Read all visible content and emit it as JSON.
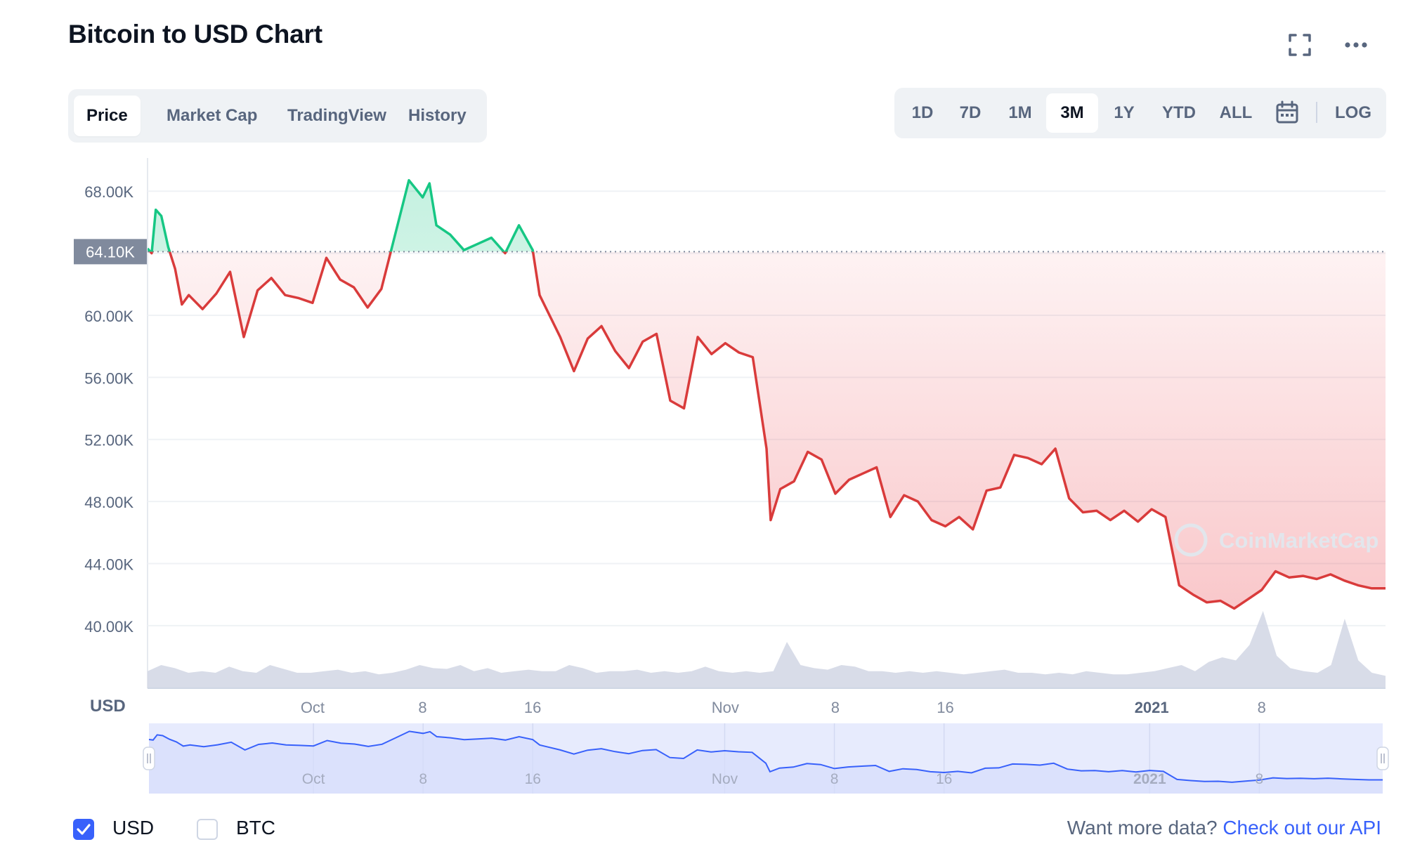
{
  "header": {
    "title": "Bitcoin to USD Chart",
    "fullscreen_icon": "fullscreen-icon",
    "more_icon": "more-dots-icon"
  },
  "tabs": [
    {
      "label": "Price",
      "active": true
    },
    {
      "label": "Market Cap",
      "active": false
    },
    {
      "label": "TradingView",
      "active": false
    },
    {
      "label": "History",
      "active": false
    }
  ],
  "ranges": [
    {
      "label": "1D",
      "active": false
    },
    {
      "label": "7D",
      "active": false
    },
    {
      "label": "1M",
      "active": false
    },
    {
      "label": "3M",
      "active": true
    },
    {
      "label": "1Y",
      "active": false
    },
    {
      "label": "YTD",
      "active": false
    },
    {
      "label": "ALL",
      "active": false
    }
  ],
  "calendar_icon": "calendar-icon",
  "log_label": "LOG",
  "colors": {
    "up": "#16c784",
    "down": "#d93b3b",
    "volume": "#d1d6e4",
    "navigator_line": "#3861fb",
    "navigator_fill": "#e7ebfd",
    "accent": "#3861fb"
  },
  "chart_data": {
    "type": "line",
    "title": "Bitcoin to USD Chart",
    "ylabel": "",
    "currency_label": "USD",
    "ylim": [
      38000,
      70000
    ],
    "yticks": [
      40000,
      44000,
      48000,
      52000,
      56000,
      60000,
      64000,
      68000
    ],
    "ytick_labels": [
      "40.00K",
      "44.00K",
      "48.00K",
      "52.00K",
      "56.00K",
      "60.00K",
      "64.00K",
      "68.00K"
    ],
    "baseline_value": 64100,
    "baseline_label": "64.10K",
    "x_ticks": [
      "Oct",
      "8",
      "16",
      "Nov",
      "8",
      "16",
      "2021",
      "8"
    ],
    "x_tick_positions": [
      12,
      20,
      28,
      42,
      50,
      58,
      73,
      81
    ],
    "x_range": [
      0,
      90
    ],
    "series": [
      {
        "x": [
          0,
          0.3,
          0.6,
          1,
          1.5,
          2,
          2.5,
          3,
          4,
          5,
          6,
          7,
          8,
          9,
          10,
          11,
          12,
          13,
          14,
          15,
          16,
          17,
          18,
          19,
          20,
          20.5,
          21,
          22,
          23,
          24,
          25,
          26,
          27,
          28,
          28.5,
          29,
          30,
          31,
          32,
          33,
          34,
          35,
          36,
          37,
          38,
          39,
          40,
          41,
          42,
          43,
          44,
          45,
          45.3,
          46,
          47,
          48,
          49,
          50,
          51,
          52,
          53,
          54,
          55,
          56,
          57,
          58,
          59,
          60,
          61,
          62,
          63,
          64,
          65,
          66,
          67,
          68,
          69,
          70,
          71,
          72,
          73,
          74,
          75,
          76,
          77,
          78,
          79,
          80,
          81,
          82,
          83,
          84,
          85,
          86,
          87,
          88,
          89,
          90
        ],
        "values": [
          64300,
          64000,
          66800,
          66400,
          64400,
          63000,
          60700,
          61300,
          60400,
          61400,
          62800,
          58600,
          61600,
          62400,
          61300,
          61100,
          60800,
          63700,
          62300,
          61800,
          60500,
          61700,
          65200,
          68700,
          67600,
          68500,
          65800,
          65200,
          64200,
          64600,
          65000,
          64000,
          65800,
          64200,
          61300,
          60400,
          58600,
          56400,
          58500,
          59300,
          57700,
          56600,
          58300,
          58800,
          54500,
          54000,
          58600,
          57500,
          58200,
          57600,
          57300,
          51400,
          46800,
          48800,
          49300,
          51200,
          50700,
          48500,
          49400,
          49800,
          50200,
          47000,
          48400,
          48000,
          46800,
          46400,
          47000,
          46200,
          48700,
          48900,
          51000,
          50800,
          50400,
          51400,
          48200,
          47300,
          47400,
          46800,
          47400,
          46700,
          47500,
          47000,
          42600,
          42000,
          41500,
          41600,
          41100,
          41700,
          42300,
          43500,
          43100,
          43200,
          43000,
          43300,
          42900,
          42600,
          42400,
          42400
        ]
      }
    ],
    "volume_relative": [
      0.22,
      0.3,
      0.26,
      0.2,
      0.22,
      0.2,
      0.28,
      0.22,
      0.2,
      0.3,
      0.25,
      0.2,
      0.2,
      0.22,
      0.24,
      0.2,
      0.22,
      0.18,
      0.2,
      0.24,
      0.3,
      0.26,
      0.25,
      0.3,
      0.22,
      0.26,
      0.2,
      0.22,
      0.24,
      0.22,
      0.22,
      0.3,
      0.26,
      0.2,
      0.22,
      0.22,
      0.24,
      0.2,
      0.22,
      0.2,
      0.22,
      0.28,
      0.22,
      0.2,
      0.22,
      0.2,
      0.22,
      0.6,
      0.3,
      0.26,
      0.24,
      0.3,
      0.28,
      0.22,
      0.22,
      0.2,
      0.22,
      0.2,
      0.22,
      0.2,
      0.18,
      0.2,
      0.22,
      0.24,
      0.2,
      0.2,
      0.18,
      0.2,
      0.18,
      0.22,
      0.2,
      0.18,
      0.18,
      0.2,
      0.22,
      0.26,
      0.3,
      0.22,
      0.34,
      0.4,
      0.36,
      0.56,
      1.0,
      0.42,
      0.26,
      0.22,
      0.2,
      0.3,
      0.9,
      0.36,
      0.2,
      0.16
    ],
    "grid": true,
    "legend": "bottom-left"
  },
  "watermark": "CoinMarketCap",
  "footer": {
    "checkboxes": [
      {
        "label": "USD",
        "checked": true
      },
      {
        "label": "BTC",
        "checked": false
      }
    ],
    "api_prompt": "Want more data?",
    "api_link": "Check out our API"
  }
}
